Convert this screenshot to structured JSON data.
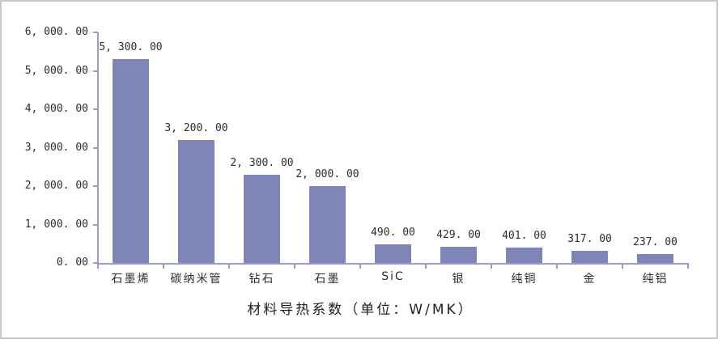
{
  "figure": {
    "background": "#ffffff",
    "border_color": "#c9c9c9"
  },
  "chart_data": {
    "type": "bar",
    "title": "材料导热系数（单位：W/MK）",
    "categories": [
      "石墨烯",
      "碳纳米管",
      "钻石",
      "石墨",
      "SiC",
      "银",
      "纯铜",
      "金",
      "纯铝"
    ],
    "values": [
      5300,
      3200,
      2300,
      2000,
      490,
      429,
      401,
      317,
      237
    ],
    "value_labels": [
      "5, 300. 00",
      "3, 200. 00",
      "2, 300. 00",
      "2, 000. 00",
      "490. 00",
      "429. 00",
      "401. 00",
      "317. 00",
      "237. 00"
    ],
    "xlabel": "",
    "ylabel": "",
    "ylim": [
      0,
      6000
    ],
    "y_ticks": [
      0,
      1000,
      2000,
      3000,
      4000,
      5000,
      6000
    ],
    "y_tick_labels": [
      "0. 00",
      "1, 000. 00",
      "2, 000. 00",
      "3, 000. 00",
      "4, 000. 00",
      "5, 000. 00",
      "6, 000. 00"
    ],
    "grid": false,
    "legend_position": "none",
    "bar_color": "#7e86b8",
    "axis_color": "#979ecb",
    "text_color": "#2d2d2d"
  }
}
